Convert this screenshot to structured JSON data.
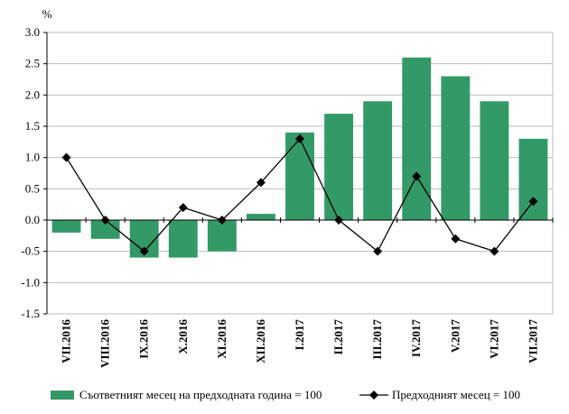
{
  "chart_data": {
    "type": "bar+line",
    "ylabel": "%",
    "ylim": [
      -1.5,
      3.0
    ],
    "yticks": [
      "3.0",
      "2.5",
      "2.0",
      "1.5",
      "1.0",
      "0.5",
      "0.0",
      "-0.5",
      "-1.0",
      "-1.5"
    ],
    "grid": true,
    "legend_placement": "bottom",
    "categories": [
      "VII.2016",
      "VIII.2016",
      "IX.2016",
      "X.2016",
      "XI.2016",
      "XII.2016",
      "I.2017",
      "II.2017",
      "III.2017",
      "IV.2017",
      "V.2017",
      "VI.2017",
      "VII.2017"
    ],
    "series": [
      {
        "name": "Съответният месец на предходната година = 100",
        "type": "bar",
        "color": "#339966",
        "values": [
          -0.2,
          -0.3,
          -0.6,
          -0.6,
          -0.5,
          0.1,
          1.4,
          1.7,
          1.9,
          2.6,
          2.3,
          1.9,
          1.3
        ]
      },
      {
        "name": "Предходният месец = 100",
        "type": "line",
        "color": "#000000",
        "marker": "diamond",
        "values": [
          1.0,
          0.0,
          -0.5,
          0.2,
          0.0,
          0.6,
          1.3,
          0.0,
          -0.5,
          0.7,
          -0.3,
          -0.5,
          0.3
        ]
      }
    ]
  }
}
